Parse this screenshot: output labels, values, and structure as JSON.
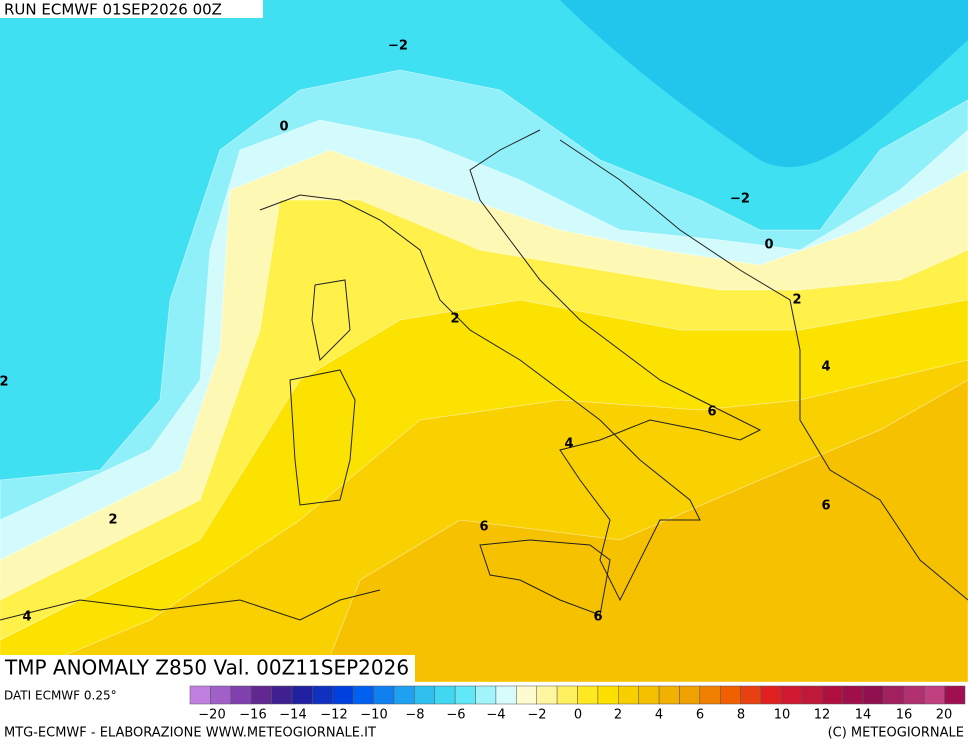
{
  "header": {
    "run": "RUN ECMWF 01SEP2026 00Z"
  },
  "contour_labels": [
    "−2",
    "0",
    "−2",
    "0",
    "2",
    "2",
    "4",
    "2",
    "6",
    "4",
    "6",
    "2",
    "6",
    "6",
    "4"
  ],
  "footer": {
    "title": "TMP ANOMALY Z850 Val. 00Z11SEP2026",
    "source": "DATI ECMWF 0.25°",
    "credit_left": "MTG-ECMWF - ELABORAZIONE WWW.METEOGIORNALE.IT",
    "credit_right": "(C) METEOGIORNALE"
  },
  "colorbar": {
    "labels": [
      "−20",
      "−16",
      "−14",
      "−12",
      "−10",
      "−8",
      "−6",
      "−4",
      "−2",
      "0",
      "2",
      "4",
      "6",
      "8",
      "10",
      "12",
      "14",
      "16",
      "20"
    ]
  }
}
